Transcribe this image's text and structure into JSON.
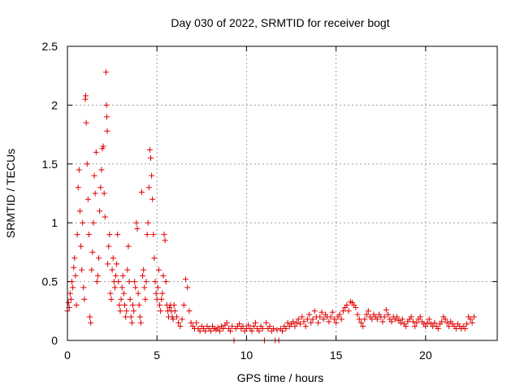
{
  "chart_data": {
    "type": "scatter",
    "title": "Day 030 of 2022, SRMTID for receiver bogt",
    "xlabel": "GPS time / hours",
    "ylabel": "SRMTID / TECUs",
    "xlim": [
      0,
      24
    ],
    "ylim": [
      0,
      2.5
    ],
    "xticks": [
      0,
      5,
      10,
      15,
      20
    ],
    "xtick_labels": [
      "0",
      "5",
      "10",
      "15",
      "20"
    ],
    "yticks": [
      0,
      0.5,
      1,
      1.5,
      2,
      2.5
    ],
    "ytick_labels": [
      "0",
      "0.5",
      "1",
      "1.5",
      "2",
      "2.5"
    ],
    "grid": true,
    "marker": "+",
    "color": "#e00000",
    "series": [
      {
        "name": "SRMTID",
        "points": [
          [
            0.0,
            0.25
          ],
          [
            0.05,
            0.32
          ],
          [
            0.1,
            0.28
          ],
          [
            0.15,
            0.4
          ],
          [
            0.2,
            0.35
          ],
          [
            0.25,
            0.5
          ],
          [
            0.3,
            0.45
          ],
          [
            0.35,
            0.62
          ],
          [
            0.4,
            0.7
          ],
          [
            0.45,
            0.55
          ],
          [
            0.5,
            0.3
          ],
          [
            0.55,
            0.9
          ],
          [
            0.6,
            1.3
          ],
          [
            0.65,
            1.45
          ],
          [
            0.7,
            1.1
          ],
          [
            0.75,
            0.8
          ],
          [
            0.8,
            0.6
          ],
          [
            0.85,
            1.0
          ],
          [
            0.9,
            0.45
          ],
          [
            0.95,
            0.35
          ],
          [
            1.0,
            2.05
          ],
          [
            1.02,
            2.08
          ],
          [
            1.05,
            1.85
          ],
          [
            1.1,
            1.5
          ],
          [
            1.15,
            1.2
          ],
          [
            1.2,
            0.9
          ],
          [
            1.25,
            0.2
          ],
          [
            1.3,
            0.15
          ],
          [
            1.35,
            0.6
          ],
          [
            1.4,
            0.75
          ],
          [
            1.45,
            1.0
          ],
          [
            1.5,
            1.4
          ],
          [
            1.55,
            1.25
          ],
          [
            1.6,
            1.6
          ],
          [
            1.65,
            0.5
          ],
          [
            1.7,
            0.55
          ],
          [
            1.75,
            0.7
          ],
          [
            1.8,
            1.1
          ],
          [
            1.85,
            1.3
          ],
          [
            1.9,
            1.45
          ],
          [
            1.95,
            1.63
          ],
          [
            2.0,
            1.65
          ],
          [
            2.05,
            1.25
          ],
          [
            2.1,
            1.05
          ],
          [
            2.15,
            2.28
          ],
          [
            2.18,
            2.0
          ],
          [
            2.2,
            1.9
          ],
          [
            2.22,
            1.78
          ],
          [
            2.25,
            0.65
          ],
          [
            2.3,
            0.8
          ],
          [
            2.35,
            0.9
          ],
          [
            2.4,
            0.4
          ],
          [
            2.45,
            0.35
          ],
          [
            2.5,
            0.6
          ],
          [
            2.55,
            0.7
          ],
          [
            2.6,
            0.5
          ],
          [
            2.65,
            0.45
          ],
          [
            2.7,
            0.55
          ],
          [
            2.75,
            0.65
          ],
          [
            2.8,
            0.9
          ],
          [
            2.85,
            0.5
          ],
          [
            2.9,
            0.3
          ],
          [
            2.95,
            0.25
          ],
          [
            3.0,
            0.35
          ],
          [
            3.05,
            0.45
          ],
          [
            3.1,
            0.55
          ],
          [
            3.15,
            0.4
          ],
          [
            3.2,
            0.3
          ],
          [
            3.25,
            0.2
          ],
          [
            3.3,
            0.25
          ],
          [
            3.35,
            0.6
          ],
          [
            3.4,
            0.8
          ],
          [
            3.45,
            0.5
          ],
          [
            3.5,
            0.35
          ],
          [
            3.55,
            0.2
          ],
          [
            3.6,
            0.15
          ],
          [
            3.65,
            0.3
          ],
          [
            3.7,
            0.25
          ],
          [
            3.75,
            0.5
          ],
          [
            3.8,
            0.45
          ],
          [
            3.85,
            1.0
          ],
          [
            3.9,
            0.95
          ],
          [
            3.95,
            0.4
          ],
          [
            4.0,
            0.3
          ],
          [
            4.05,
            0.2
          ],
          [
            4.1,
            0.15
          ],
          [
            4.15,
            1.26
          ],
          [
            4.2,
            0.55
          ],
          [
            4.25,
            0.6
          ],
          [
            4.3,
            0.45
          ],
          [
            4.35,
            0.35
          ],
          [
            4.4,
            0.5
          ],
          [
            4.45,
            0.9
          ],
          [
            4.5,
            1.0
          ],
          [
            4.55,
            1.3
          ],
          [
            4.6,
            1.62
          ],
          [
            4.65,
            1.55
          ],
          [
            4.7,
            1.4
          ],
          [
            4.75,
            1.2
          ],
          [
            4.8,
            0.9
          ],
          [
            4.85,
            0.7
          ],
          [
            4.9,
            0.5
          ],
          [
            4.95,
            0.4
          ],
          [
            5.0,
            0.35
          ],
          [
            5.05,
            0.45
          ],
          [
            5.1,
            0.6
          ],
          [
            5.15,
            0.3
          ],
          [
            5.2,
            0.25
          ],
          [
            5.25,
            0.35
          ],
          [
            5.3,
            0.4
          ],
          [
            5.35,
            0.55
          ],
          [
            5.4,
            0.9
          ],
          [
            5.45,
            0.85
          ],
          [
            5.5,
            0.5
          ],
          [
            5.55,
            0.3
          ],
          [
            5.6,
            0.25
          ],
          [
            5.65,
            0.2
          ],
          [
            5.7,
            0.28
          ],
          [
            5.75,
            0.3
          ],
          [
            5.8,
            0.25
          ],
          [
            5.85,
            0.2
          ],
          [
            5.9,
            0.18
          ],
          [
            5.95,
            0.3
          ],
          [
            6.0,
            0.25
          ],
          [
            6.1,
            0.2
          ],
          [
            6.2,
            0.15
          ],
          [
            6.3,
            0.12
          ],
          [
            6.4,
            0.18
          ],
          [
            6.5,
            0.3
          ],
          [
            6.6,
            0.52
          ],
          [
            6.7,
            0.45
          ],
          [
            6.8,
            0.25
          ],
          [
            6.9,
            0.15
          ],
          [
            7.0,
            0.12
          ],
          [
            7.1,
            0.1
          ],
          [
            7.2,
            0.15
          ],
          [
            7.3,
            0.1
          ],
          [
            7.4,
            0.08
          ],
          [
            7.5,
            0.12
          ],
          [
            7.6,
            0.1
          ],
          [
            7.7,
            0.08
          ],
          [
            7.8,
            0.12
          ],
          [
            7.9,
            0.1
          ],
          [
            8.0,
            0.08
          ],
          [
            8.1,
            0.12
          ],
          [
            8.2,
            0.1
          ],
          [
            8.3,
            0.09
          ],
          [
            8.4,
            0.11
          ],
          [
            8.5,
            0.08
          ],
          [
            8.6,
            0.12
          ],
          [
            8.7,
            0.1
          ],
          [
            8.8,
            0.13
          ],
          [
            8.9,
            0.15
          ],
          [
            9.0,
            0.1
          ],
          [
            9.1,
            0.08
          ],
          [
            9.2,
            0.12
          ],
          [
            9.3,
            0.0
          ],
          [
            9.4,
            0.1
          ],
          [
            9.5,
            0.12
          ],
          [
            9.6,
            0.14
          ],
          [
            9.7,
            0.1
          ],
          [
            9.8,
            0.12
          ],
          [
            9.9,
            0.08
          ],
          [
            10.0,
            0.1
          ],
          [
            10.1,
            0.13
          ],
          [
            10.2,
            0.1
          ],
          [
            10.3,
            0.08
          ],
          [
            10.4,
            0.12
          ],
          [
            10.5,
            0.15
          ],
          [
            10.6,
            0.1
          ],
          [
            10.7,
            0.08
          ],
          [
            10.8,
            0.12
          ],
          [
            10.9,
            0.1
          ],
          [
            11.0,
            0.0
          ],
          [
            11.1,
            0.15
          ],
          [
            11.2,
            0.1
          ],
          [
            11.3,
            0.12
          ],
          [
            11.4,
            0.08
          ],
          [
            11.5,
            0.1
          ],
          [
            11.6,
            0.0
          ],
          [
            11.7,
            0.09
          ],
          [
            11.8,
            0.0
          ],
          [
            11.9,
            0.1
          ],
          [
            12.0,
            0.08
          ],
          [
            12.1,
            0.12
          ],
          [
            12.2,
            0.1
          ],
          [
            12.3,
            0.15
          ],
          [
            12.4,
            0.12
          ],
          [
            12.5,
            0.14
          ],
          [
            12.6,
            0.16
          ],
          [
            12.7,
            0.12
          ],
          [
            12.8,
            0.15
          ],
          [
            12.9,
            0.18
          ],
          [
            13.0,
            0.14
          ],
          [
            13.1,
            0.2
          ],
          [
            13.2,
            0.16
          ],
          [
            13.3,
            0.12
          ],
          [
            13.4,
            0.18
          ],
          [
            13.5,
            0.22
          ],
          [
            13.6,
            0.15
          ],
          [
            13.7,
            0.18
          ],
          [
            13.8,
            0.25
          ],
          [
            13.9,
            0.2
          ],
          [
            14.0,
            0.15
          ],
          [
            14.1,
            0.2
          ],
          [
            14.2,
            0.24
          ],
          [
            14.3,
            0.18
          ],
          [
            14.4,
            0.22
          ],
          [
            14.5,
            0.2
          ],
          [
            14.6,
            0.16
          ],
          [
            14.7,
            0.2
          ],
          [
            14.8,
            0.24
          ],
          [
            14.9,
            0.18
          ],
          [
            15.0,
            0.15
          ],
          [
            15.1,
            0.2
          ],
          [
            15.2,
            0.22
          ],
          [
            15.3,
            0.18
          ],
          [
            15.4,
            0.25
          ],
          [
            15.5,
            0.28
          ],
          [
            15.6,
            0.3
          ],
          [
            15.7,
            0.25
          ],
          [
            15.8,
            0.33
          ],
          [
            15.9,
            0.32
          ],
          [
            16.0,
            0.3
          ],
          [
            16.1,
            0.28
          ],
          [
            16.2,
            0.22
          ],
          [
            16.3,
            0.18
          ],
          [
            16.4,
            0.15
          ],
          [
            16.5,
            0.12
          ],
          [
            16.6,
            0.18
          ],
          [
            16.7,
            0.22
          ],
          [
            16.8,
            0.25
          ],
          [
            16.9,
            0.2
          ],
          [
            17.0,
            0.18
          ],
          [
            17.1,
            0.22
          ],
          [
            17.2,
            0.2
          ],
          [
            17.3,
            0.18
          ],
          [
            17.4,
            0.22
          ],
          [
            17.5,
            0.2
          ],
          [
            17.6,
            0.16
          ],
          [
            17.7,
            0.2
          ],
          [
            17.8,
            0.26
          ],
          [
            17.9,
            0.22
          ],
          [
            18.0,
            0.18
          ],
          [
            18.1,
            0.16
          ],
          [
            18.2,
            0.2
          ],
          [
            18.3,
            0.18
          ],
          [
            18.4,
            0.2
          ],
          [
            18.5,
            0.17
          ],
          [
            18.6,
            0.15
          ],
          [
            18.7,
            0.18
          ],
          [
            18.8,
            0.14
          ],
          [
            18.9,
            0.12
          ],
          [
            19.0,
            0.16
          ],
          [
            19.1,
            0.18
          ],
          [
            19.2,
            0.2
          ],
          [
            19.3,
            0.16
          ],
          [
            19.4,
            0.12
          ],
          [
            19.5,
            0.15
          ],
          [
            19.6,
            0.18
          ],
          [
            19.7,
            0.2
          ],
          [
            19.8,
            0.16
          ],
          [
            19.9,
            0.14
          ],
          [
            20.0,
            0.12
          ],
          [
            20.1,
            0.15
          ],
          [
            20.2,
            0.18
          ],
          [
            20.3,
            0.14
          ],
          [
            20.4,
            0.12
          ],
          [
            20.5,
            0.15
          ],
          [
            20.6,
            0.12
          ],
          [
            20.7,
            0.1
          ],
          [
            20.8,
            0.14
          ],
          [
            20.9,
            0.16
          ],
          [
            21.0,
            0.2
          ],
          [
            21.1,
            0.18
          ],
          [
            21.2,
            0.15
          ],
          [
            21.3,
            0.12
          ],
          [
            21.4,
            0.16
          ],
          [
            21.5,
            0.14
          ],
          [
            21.6,
            0.12
          ],
          [
            21.7,
            0.1
          ],
          [
            21.8,
            0.14
          ],
          [
            21.9,
            0.12
          ],
          [
            22.0,
            0.1
          ],
          [
            22.1,
            0.12
          ],
          [
            22.2,
            0.1
          ],
          [
            22.3,
            0.14
          ],
          [
            22.4,
            0.2
          ],
          [
            22.5,
            0.18
          ],
          [
            22.6,
            0.15
          ],
          [
            22.7,
            0.2
          ]
        ]
      }
    ]
  }
}
